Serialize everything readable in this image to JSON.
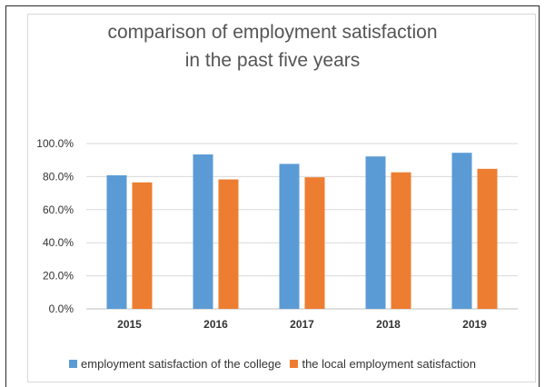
{
  "chart_data": {
    "type": "bar",
    "title_line1": "comparison of employment satisfaction",
    "title_line2": "in the past five years",
    "categories": [
      "2015",
      "2016",
      "2017",
      "2018",
      "2019"
    ],
    "series": [
      {
        "name": "employment satisfaction of the college",
        "values": [
          80.8,
          93.4,
          87.7,
          92.2,
          94.4
        ],
        "color": "#5b9bd5"
      },
      {
        "name": "the local employment satisfaction",
        "values": [
          76.5,
          78.3,
          79.6,
          82.6,
          84.7
        ],
        "color": "#ed7d31"
      }
    ],
    "ylim": [
      0,
      100
    ],
    "yticks": [
      "0.0%",
      "20.0%",
      "40.0%",
      "60.0%",
      "80.0%",
      "100.0%"
    ],
    "grid": true,
    "legend_position": "bottom"
  }
}
